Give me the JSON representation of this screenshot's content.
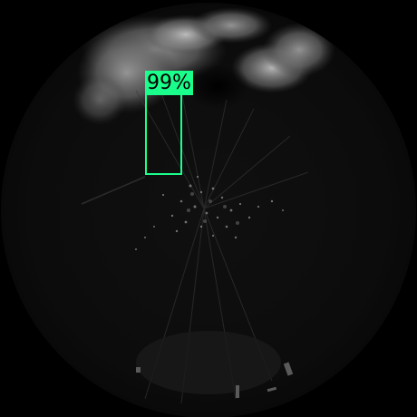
{
  "detection": {
    "label": "99%",
    "color": "#1aff8c"
  },
  "scene": {
    "background": "#000000",
    "disc_color": "#0b0b0b"
  }
}
